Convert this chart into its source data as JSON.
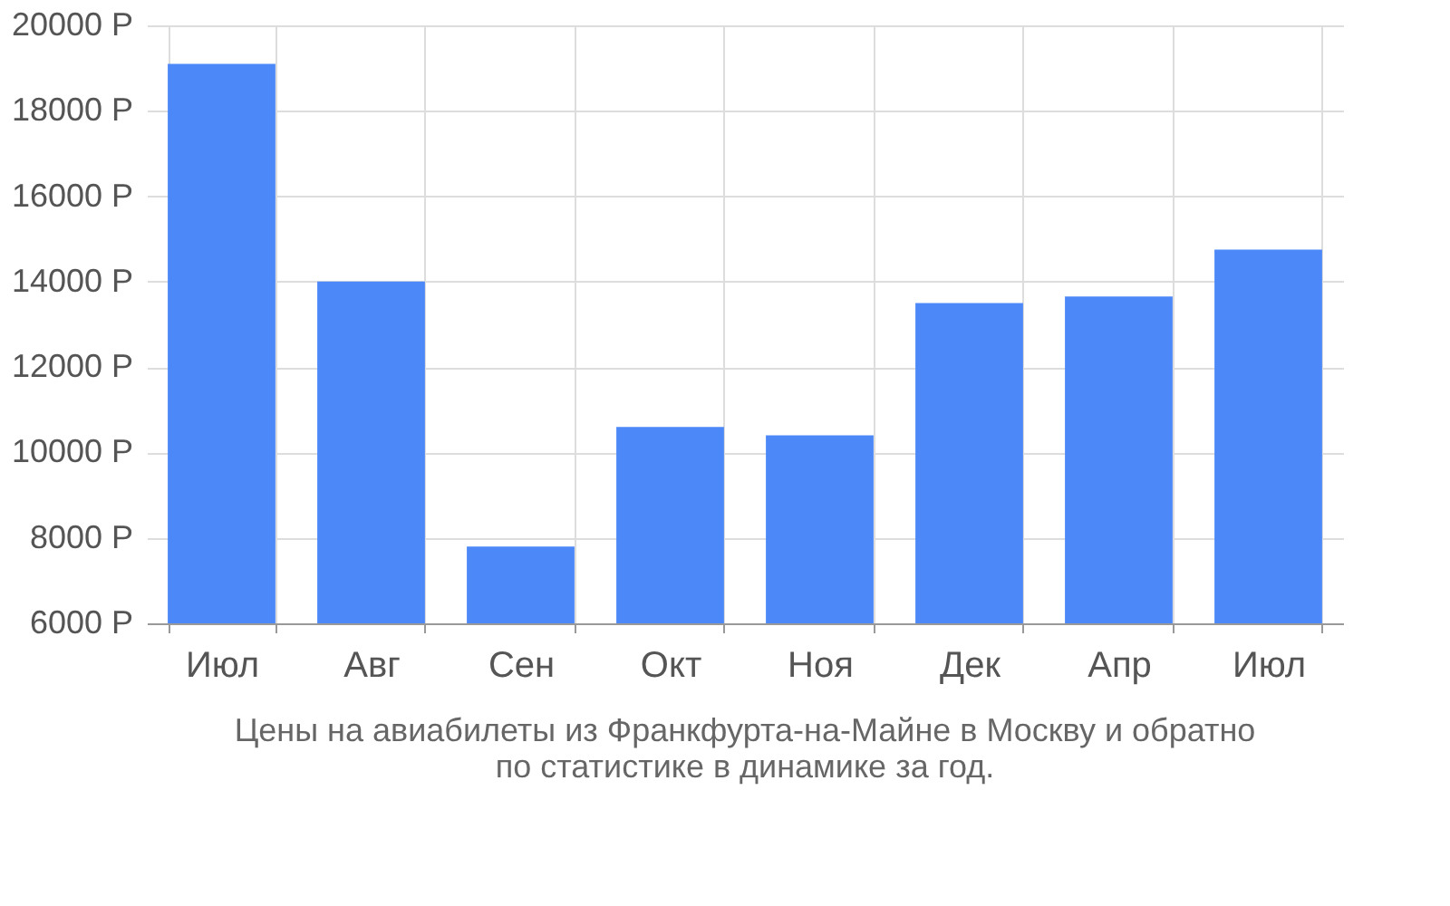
{
  "chart_data": {
    "type": "bar",
    "title": "Цены на авиабилеты из Франкфурта-на-Майне в Москву и обратно\nпо статистике в динамике за год.",
    "categories": [
      "Июл",
      "Авг",
      "Сен",
      "Окт",
      "Ноя",
      "Дек",
      "Апр",
      "Июл"
    ],
    "values": [
      19100,
      14000,
      7800,
      10600,
      10400,
      13500,
      13650,
      14750
    ],
    "color": "#4d88f9",
    "ylim": [
      6000,
      20000
    ],
    "yticks": [
      {
        "value": 6000,
        "label": "6000 Р"
      },
      {
        "value": 8000,
        "label": "8000 Р"
      },
      {
        "value": 10000,
        "label": "10000 Р"
      },
      {
        "value": 12000,
        "label": "12000 Р"
      },
      {
        "value": 14000,
        "label": "14000 Р"
      },
      {
        "value": 16000,
        "label": "16000 Р"
      },
      {
        "value": 18000,
        "label": "18000 Р"
      },
      {
        "value": 20000,
        "label": "20000 Р"
      }
    ],
    "grid": true
  }
}
